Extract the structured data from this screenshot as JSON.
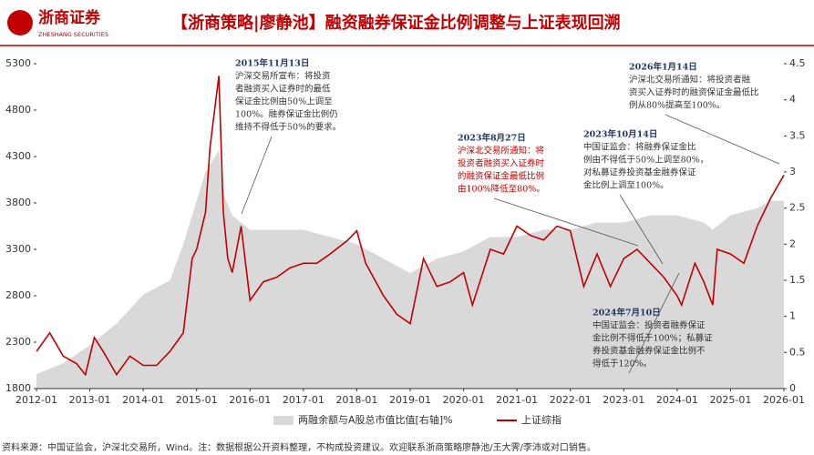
{
  "header": {
    "logo": "浙商证券",
    "logo_en": "ZHESHANG SECURITIES",
    "title": "【浙商策略|廖静池】融资融券保证金比例调整与上证表现回溯"
  },
  "chart_data": {
    "type": "line",
    "xticks": [
      "2012-01",
      "2013-01",
      "2014-01",
      "2015-01",
      "2016-01",
      "2017-01",
      "2018-01",
      "2019-01",
      "2020-01",
      "2021-01",
      "2022-01",
      "2023-01",
      "2024-01",
      "2025-01",
      "2026-01"
    ],
    "ylim": [
      1800,
      5300
    ],
    "yticks": [
      1800,
      2300,
      2800,
      3300,
      3800,
      4300,
      4800,
      5300
    ],
    "y2lim": [
      0,
      4.5
    ],
    "y2ticks": [
      0,
      0.5,
      1,
      1.5,
      2,
      2.5,
      3,
      3.5,
      4,
      4.5
    ],
    "series": [
      {
        "name": "两融余额与A股总市值比值[右轴]%",
        "type": "area",
        "axis": "y2",
        "color": "#d9d9d9",
        "x": [
          "2012-01",
          "2012-07",
          "2013-01",
          "2013-07",
          "2014-01",
          "2014-07",
          "2014-10",
          "2015-01",
          "2015-03",
          "2015-06",
          "2015-07",
          "2015-09",
          "2016-01",
          "2016-07",
          "2017-01",
          "2017-07",
          "2018-01",
          "2018-07",
          "2019-01",
          "2019-07",
          "2020-01",
          "2020-07",
          "2021-01",
          "2021-07",
          "2022-01",
          "2022-07",
          "2023-01",
          "2023-07",
          "2024-01",
          "2024-07",
          "2024-09",
          "2025-01",
          "2025-07",
          "2025-10",
          "2026-01"
        ],
        "values": [
          0.2,
          0.35,
          0.6,
          0.9,
          1.3,
          1.5,
          2.0,
          2.6,
          3.0,
          3.3,
          2.7,
          2.4,
          2.2,
          2.2,
          2.2,
          2.1,
          2.0,
          1.8,
          1.6,
          1.8,
          1.9,
          2.1,
          2.1,
          2.2,
          2.2,
          2.3,
          2.3,
          2.4,
          2.4,
          2.3,
          2.2,
          2.4,
          2.5,
          2.6,
          2.6
        ]
      },
      {
        "name": "上证综指",
        "type": "line",
        "axis": "y",
        "color": "#c00000",
        "x": [
          "2012-01",
          "2012-04",
          "2012-07",
          "2012-10",
          "2012-12",
          "2013-02",
          "2013-04",
          "2013-07",
          "2013-10",
          "2014-01",
          "2014-04",
          "2014-07",
          "2014-10",
          "2014-12",
          "2015-01",
          "2015-03",
          "2015-04",
          "2015-06",
          "2015-07",
          "2015-08",
          "2015-09",
          "2015-11",
          "2016-01",
          "2016-04",
          "2016-07",
          "2016-10",
          "2017-01",
          "2017-04",
          "2017-07",
          "2017-11",
          "2018-01",
          "2018-03",
          "2018-07",
          "2018-10",
          "2019-01",
          "2019-04",
          "2019-07",
          "2019-10",
          "2020-01",
          "2020-03",
          "2020-07",
          "2020-10",
          "2021-01",
          "2021-04",
          "2021-07",
          "2021-10",
          "2022-01",
          "2022-04",
          "2022-07",
          "2022-10",
          "2023-01",
          "2023-04",
          "2023-08",
          "2023-10",
          "2024-01",
          "2024-02",
          "2024-05",
          "2024-07",
          "2024-09",
          "2024-10",
          "2025-01",
          "2025-04",
          "2025-07",
          "2025-10",
          "2026-01"
        ],
        "values": [
          2200,
          2400,
          2150,
          2070,
          1950,
          2350,
          2200,
          1950,
          2150,
          2050,
          2050,
          2200,
          2400,
          3200,
          3300,
          3700,
          4400,
          5170,
          3700,
          3200,
          3050,
          3550,
          2750,
          2950,
          3000,
          3100,
          3150,
          3150,
          3250,
          3400,
          3500,
          3150,
          2800,
          2600,
          2500,
          3200,
          2900,
          2950,
          3050,
          2700,
          3300,
          3250,
          3550,
          3450,
          3400,
          3550,
          3500,
          2900,
          3250,
          2900,
          3200,
          3300,
          3100,
          3000,
          2800,
          2700,
          3150,
          2950,
          2700,
          3300,
          3250,
          3150,
          3550,
          3850,
          4100
        ]
      }
    ],
    "annotations": [
      {
        "date": "2015年11月13日",
        "color": "#333333",
        "lines": [
          "沪深交易所宣布：将投资",
          "者融资买入证券时的最低",
          "保证金比例由50%上调至",
          "100%。融券保证金比例仍",
          "维持不得低于50%的要求。"
        ]
      },
      {
        "date": "2023年8月27日",
        "color": "#c00000",
        "lines": [
          "沪深北交易所通知：将",
          "投资者融资买入证券时",
          "的融资保证金最低比例",
          "由100%降低至80%。"
        ]
      },
      {
        "date": "2023年10月14日",
        "color": "#333333",
        "lines": [
          "中国证监会：将融券保证金比",
          "例由不得低于50%上调至80%，",
          "对私募证券投资基金融券保证",
          "金比例上调至100%。"
        ]
      },
      {
        "date": "2026年1月14日",
        "color": "#333333",
        "lines": [
          "沪深北交易所通知：将投资者融",
          "资买入证券时的融资保证金最低比",
          "例从80%提高至100%。"
        ]
      },
      {
        "date": "2024年7月10日",
        "color": "#333333",
        "lines": [
          "中国证监会：投资者融券保证",
          "金比例不得低于100%；私募证",
          "券投资基金融券保证金比例不",
          "得低于120%。"
        ]
      }
    ]
  },
  "footer": "资料来源：中国证监会，沪深北交易所，Wind。注：数据根据公开资料整理，不构成投资建议。欢迎联系浙商策略廖静池/王大霁/李沛或对口销售。"
}
